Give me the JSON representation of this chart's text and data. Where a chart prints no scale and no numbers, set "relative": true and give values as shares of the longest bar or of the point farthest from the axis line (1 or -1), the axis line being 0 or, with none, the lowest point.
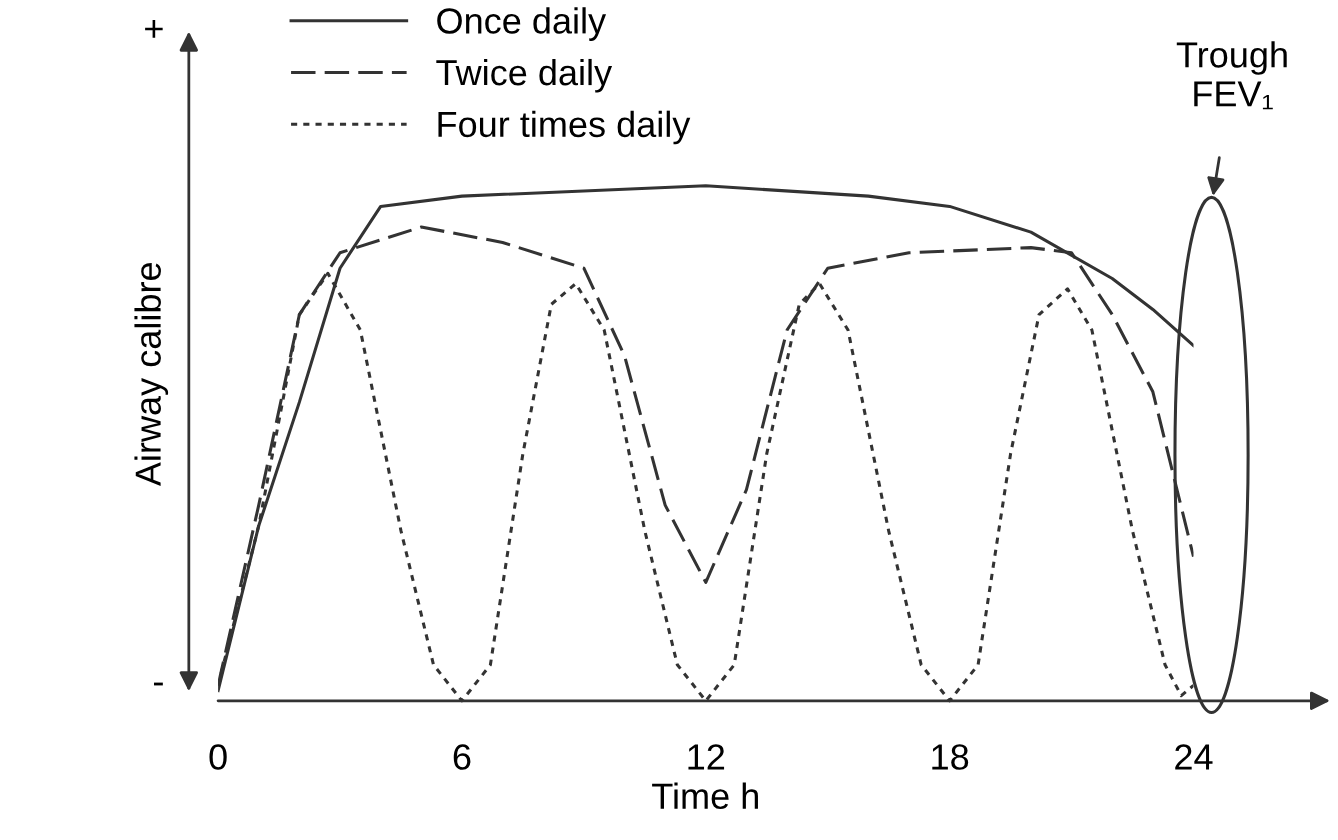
{
  "chart_data": {
    "type": "line",
    "relative": true,
    "xlabel": "Time h",
    "ylabel": "Airway calibre",
    "xlim": [
      0,
      24
    ],
    "xticks": [
      0,
      6,
      12,
      18,
      24
    ],
    "tick_labels": "x",
    "grid": false,
    "legend": "top left",
    "marker": "none",
    "annotations": [
      "+",
      "-",
      "Trough\nFEV₁"
    ],
    "series": [
      {
        "name": "Once daily",
        "color": "#333333",
        "line_style": "solid",
        "x": [
          0,
          1,
          2,
          3,
          4,
          6,
          12,
          16,
          18,
          20,
          22,
          23,
          24
        ],
        "values": [
          0.02,
          0.34,
          0.58,
          0.84,
          0.96,
          0.98,
          1.0,
          0.98,
          0.96,
          0.91,
          0.82,
          0.76,
          0.69
        ]
      },
      {
        "name": "Twice daily",
        "color": "#333333",
        "line_style": "dashed",
        "x": [
          0,
          1,
          2,
          3,
          5,
          7,
          9,
          10,
          11,
          12,
          13,
          14,
          15,
          17,
          20,
          21,
          22,
          23,
          24
        ],
        "values": [
          0.03,
          0.38,
          0.75,
          0.87,
          0.92,
          0.89,
          0.84,
          0.67,
          0.38,
          0.23,
          0.41,
          0.72,
          0.84,
          0.87,
          0.88,
          0.87,
          0.75,
          0.6,
          0.28
        ]
      },
      {
        "name": "Four times daily",
        "color": "#333333",
        "line_style": "dotted",
        "x": [
          0,
          1,
          2,
          2.7,
          3.5,
          4.5,
          5.3,
          6,
          6.7,
          7.5,
          8.2,
          8.8,
          9.5,
          10.5,
          11.3,
          12,
          12.7,
          13.5,
          14.3,
          14.8,
          15.5,
          16.5,
          17.3,
          18,
          18.7,
          19.5,
          20.2,
          20.9,
          21.5,
          22.5,
          23.3,
          23.7,
          24
        ],
        "values": [
          0.03,
          0.34,
          0.75,
          0.83,
          0.72,
          0.33,
          0.07,
          0,
          0.07,
          0.48,
          0.77,
          0.81,
          0.72,
          0.33,
          0.07,
          0,
          0.07,
          0.48,
          0.77,
          0.81,
          0.72,
          0.33,
          0.07,
          0,
          0.07,
          0.48,
          0.75,
          0.8,
          0.72,
          0.33,
          0.07,
          0.01,
          0.03
        ]
      }
    ]
  }
}
